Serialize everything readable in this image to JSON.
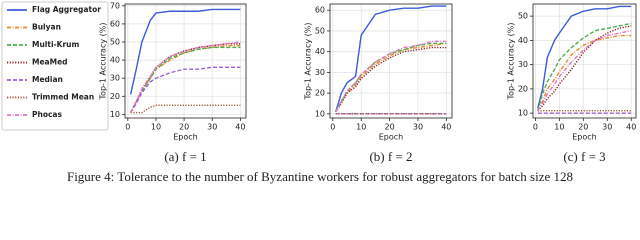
{
  "figure_caption": "Figure 4: Tolerance to the number of Byzantine workers for robust aggregators for batch size 128",
  "chart_data": [
    {
      "type": "line",
      "caption": "(a) f = 1",
      "x_label": "Epoch",
      "y_label": "Top-1 Accuracy (%)",
      "x": [
        1,
        3,
        5,
        8,
        10,
        15,
        20,
        25,
        30,
        35,
        40
      ],
      "xlim": [
        -1,
        42
      ],
      "xticks": [
        0,
        10,
        20,
        30,
        40
      ],
      "ylim": [
        8,
        71
      ],
      "yticks": [
        10,
        20,
        30,
        40,
        50,
        60,
        70
      ],
      "grid": true,
      "series": [
        {
          "name": "Flag Aggregator",
          "color": "#3b5bdb",
          "style": "solid",
          "values": [
            21,
            35,
            50,
            62,
            66,
            67,
            67,
            67,
            68,
            68,
            68
          ]
        },
        {
          "name": "Bulyan",
          "color": "#e8892b",
          "style": "dashdot",
          "values": [
            11,
            17,
            23,
            30,
            35,
            40,
            44,
            46,
            47,
            48,
            48
          ]
        },
        {
          "name": "Multi-Krum",
          "color": "#4caf50",
          "style": "dashed",
          "values": [
            11,
            17,
            23,
            30,
            35,
            41,
            44,
            46,
            47,
            47,
            47
          ]
        },
        {
          "name": "MeaMed",
          "color": "#8b1a1a",
          "style": "dotted",
          "values": [
            11,
            17,
            24,
            31,
            36,
            42,
            45,
            47,
            48,
            49,
            49
          ]
        },
        {
          "name": "Median",
          "color": "#9c5fd6",
          "style": "dashed",
          "values": [
            11,
            16,
            22,
            28,
            30,
            33,
            35,
            35,
            36,
            36,
            36
          ]
        },
        {
          "name": "Trimmed Mean",
          "color": "#a0522d",
          "style": "dotted",
          "values": [
            11,
            11,
            11,
            14,
            15,
            15,
            15,
            15,
            15,
            15,
            15
          ]
        },
        {
          "name": "Phocas",
          "color": "#e377c2",
          "style": "dashdot",
          "values": [
            11,
            17,
            24,
            31,
            36,
            42,
            45,
            47,
            48,
            49,
            50
          ]
        }
      ]
    },
    {
      "type": "line",
      "caption": "(b) f = 2",
      "x_label": "Epoch",
      "y_label": "Top-1 Accuracy (%)",
      "x": [
        1,
        3,
        5,
        8,
        10,
        15,
        20,
        25,
        30,
        35,
        40
      ],
      "xlim": [
        -1,
        42
      ],
      "xticks": [
        0,
        10,
        20,
        30,
        40
      ],
      "ylim": [
        8,
        63
      ],
      "yticks": [
        10,
        20,
        30,
        40,
        50,
        60
      ],
      "grid": true,
      "series": [
        {
          "color": "#3b5bdb",
          "style": "solid",
          "values": [
            11,
            20,
            25,
            28,
            48,
            58,
            60,
            61,
            61,
            62,
            62
          ]
        },
        {
          "color": "#e8892b",
          "style": "dashdot",
          "values": [
            11,
            16,
            20,
            24,
            28,
            34,
            38,
            41,
            42,
            43,
            44
          ]
        },
        {
          "color": "#4caf50",
          "style": "dashed",
          "values": [
            11,
            16,
            21,
            25,
            29,
            35,
            39,
            41,
            43,
            44,
            44
          ]
        },
        {
          "color": "#8b1a1a",
          "style": "dotted",
          "values": [
            11,
            15,
            20,
            23,
            27,
            33,
            37,
            40,
            41,
            42,
            42
          ]
        },
        {
          "color": "#9c5fd6",
          "style": "dashed",
          "values": [
            10,
            10,
            10,
            10,
            10,
            10,
            10,
            10,
            10,
            10,
            10
          ]
        },
        {
          "color": "#a0522d",
          "style": "dotted",
          "values": [
            10,
            10,
            10,
            10,
            10,
            10,
            10,
            10,
            10,
            10,
            10
          ]
        },
        {
          "color": "#e377c2",
          "style": "dashdot",
          "values": [
            11,
            16,
            21,
            25,
            29,
            35,
            39,
            42,
            43,
            45,
            45
          ]
        }
      ]
    },
    {
      "type": "line",
      "caption": "(c) f = 3",
      "x_label": "Epoch",
      "y_label": "Top-1 Accuracy (%)",
      "x": [
        1,
        3,
        5,
        8,
        10,
        15,
        20,
        25,
        30,
        35,
        40
      ],
      "xlim": [
        -1,
        42
      ],
      "xticks": [
        0,
        10,
        20,
        30,
        40
      ],
      "ylim": [
        8,
        55
      ],
      "yticks": [
        10,
        20,
        30,
        40,
        50
      ],
      "grid": true,
      "series": [
        {
          "color": "#3b5bdb",
          "style": "solid",
          "values": [
            12,
            20,
            33,
            40,
            43,
            50,
            52,
            53,
            53,
            54,
            54
          ]
        },
        {
          "color": "#e8892b",
          "style": "dashdot",
          "values": [
            11,
            15,
            20,
            24,
            27,
            34,
            38,
            40,
            41,
            42,
            42
          ]
        },
        {
          "color": "#4caf50",
          "style": "dashed",
          "values": [
            11,
            18,
            23,
            28,
            32,
            37,
            41,
            44,
            45,
            46,
            47
          ]
        },
        {
          "color": "#8b1a1a",
          "style": "dotted",
          "values": [
            11,
            13,
            16,
            19,
            22,
            28,
            35,
            40,
            43,
            45,
            46
          ]
        },
        {
          "color": "#9c5fd6",
          "style": "dashed",
          "values": [
            10,
            10,
            10,
            10,
            10,
            10,
            10,
            10,
            10,
            10,
            10
          ]
        },
        {
          "color": "#a0522d",
          "style": "dotted",
          "values": [
            11,
            11,
            11,
            11,
            11,
            11,
            11,
            11,
            11,
            11,
            11
          ]
        },
        {
          "color": "#e377c2",
          "style": "dashdot",
          "values": [
            11,
            14,
            18,
            22,
            25,
            31,
            36,
            40,
            42,
            43,
            44
          ]
        }
      ]
    }
  ]
}
